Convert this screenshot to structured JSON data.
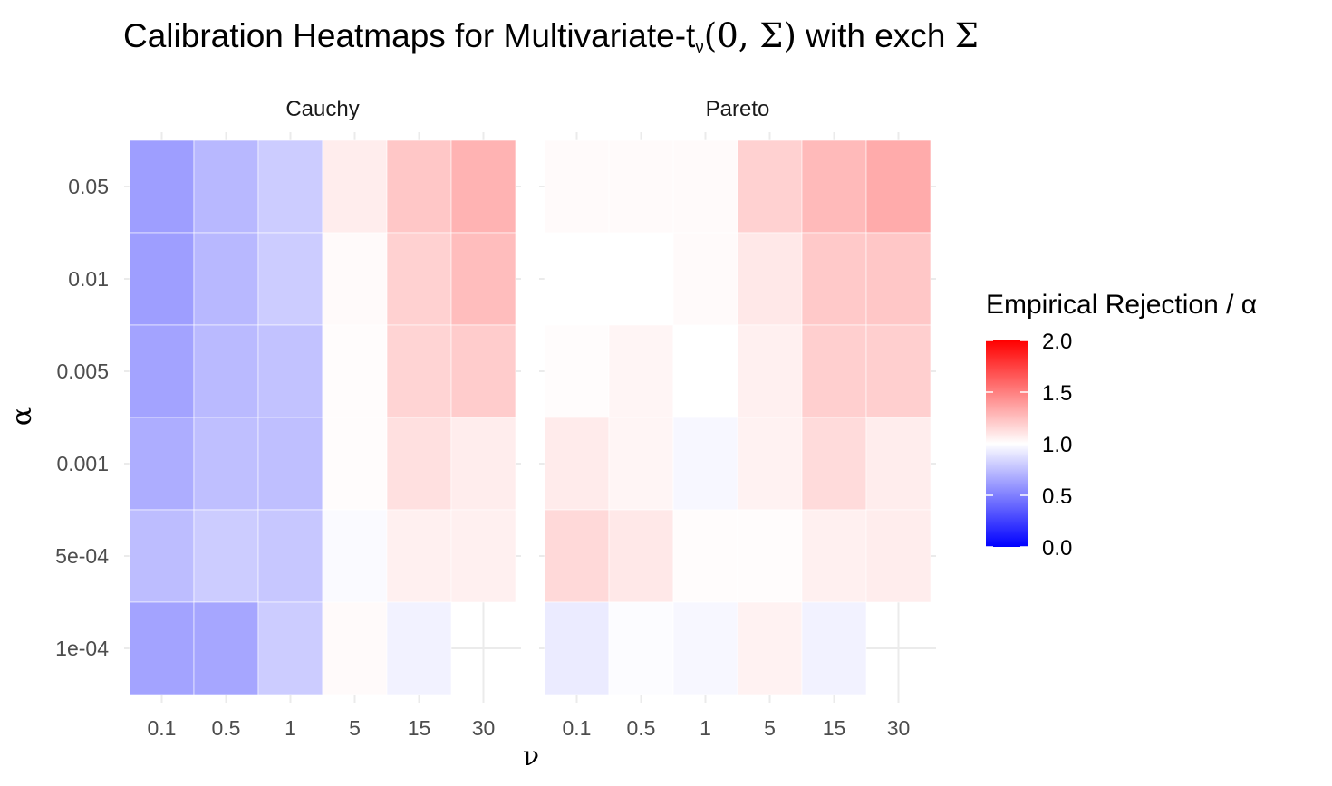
{
  "title": {
    "prefix": "Calibration Heatmaps for Multivariate-t",
    "sub": "ν",
    "math": "(0, Σ)",
    "mid": " with exch ",
    "sigma": "Σ"
  },
  "chart_data": {
    "type": "heatmap",
    "xlabel": "ν",
    "ylabel": "α",
    "x_categories": [
      "0.1",
      "0.5",
      "1",
      "5",
      "15",
      "30"
    ],
    "y_categories": [
      "0.05",
      "0.01",
      "0.005",
      "0.001",
      "5e-04",
      "1e-04"
    ],
    "panels": [
      {
        "name": "Cauchy",
        "values": [
          [
            0.62,
            0.72,
            0.8,
            1.07,
            1.22,
            1.3
          ],
          [
            0.62,
            0.72,
            0.8,
            1.02,
            1.18,
            1.26
          ],
          [
            0.64,
            0.73,
            0.76,
            1.01,
            1.17,
            1.2
          ],
          [
            0.68,
            0.75,
            0.75,
            1.01,
            1.12,
            1.07
          ],
          [
            0.74,
            0.8,
            0.78,
            0.98,
            1.06,
            1.06
          ],
          [
            0.64,
            0.65,
            0.8,
            1.02,
            0.95,
            null
          ]
        ]
      },
      {
        "name": "Pareto",
        "values": [
          [
            1.02,
            1.02,
            1.02,
            1.18,
            1.27,
            1.33
          ],
          [
            1.0,
            1.0,
            1.02,
            1.09,
            1.21,
            1.22
          ],
          [
            1.01,
            1.04,
            1.0,
            1.06,
            1.19,
            1.19
          ],
          [
            1.08,
            1.04,
            0.97,
            1.05,
            1.14,
            1.07
          ],
          [
            1.15,
            1.09,
            1.01,
            1.01,
            1.06,
            1.07
          ],
          [
            0.92,
            0.99,
            0.97,
            1.05,
            0.95,
            null
          ]
        ]
      }
    ],
    "legend": {
      "title": "Empirical Rejection / α",
      "position": "right",
      "limits": [
        0.0,
        2.0
      ],
      "ticks": [
        "2.0",
        "1.5",
        "1.0",
        "0.5",
        "0.0"
      ],
      "colors": {
        "low": "#0000ff",
        "mid": "#ffffff",
        "high": "#ff0000"
      },
      "midpoint": 1.0
    }
  }
}
